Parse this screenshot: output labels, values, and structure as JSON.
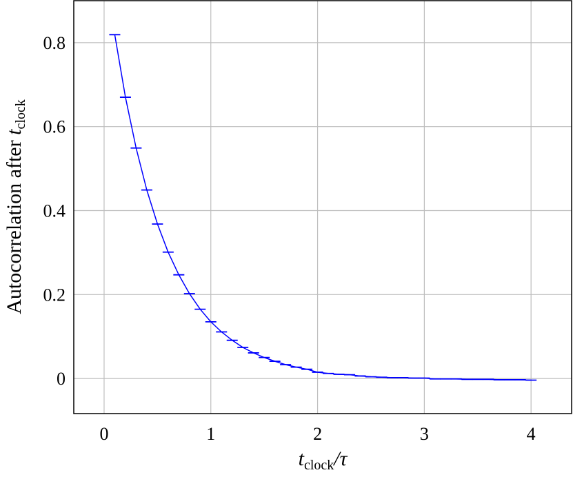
{
  "chart_data": {
    "type": "errorline",
    "xlabel": {
      "main": "t",
      "sub": "clock",
      "rest": "/τ"
    },
    "ylabel": {
      "main": "Autocorrelation after ",
      "var": "t",
      "sub": "clock"
    },
    "x": [
      0.1,
      0.2,
      0.3,
      0.4,
      0.5,
      0.6,
      0.7,
      0.8,
      0.9,
      1.0,
      1.1,
      1.2,
      1.3,
      1.4,
      1.5,
      1.6,
      1.7,
      1.8,
      1.9,
      2.0,
      2.1,
      2.2,
      2.3,
      2.4,
      2.5,
      2.6,
      2.7,
      2.8,
      2.9,
      3.0,
      3.1,
      3.2,
      3.3,
      3.4,
      3.5,
      3.6,
      3.7,
      3.8,
      3.9,
      4.0
    ],
    "series": [
      {
        "color": "#0000ff",
        "values": [
          0.819,
          0.67,
          0.549,
          0.449,
          0.368,
          0.301,
          0.247,
          0.202,
          0.165,
          0.135,
          0.111,
          0.091,
          0.074,
          0.061,
          0.05,
          0.041,
          0.033,
          0.027,
          0.022,
          0.015,
          0.012,
          0.01,
          0.009,
          0.006,
          0.004,
          0.003,
          0.002,
          0.002,
          0.001,
          0.001,
          -0.001,
          -0.001,
          -0.001,
          -0.002,
          -0.002,
          -0.002,
          -0.003,
          -0.003,
          -0.003,
          -0.004
        ]
      }
    ],
    "xlim": [
      -0.284,
      4.38
    ],
    "ylim": [
      -0.0836,
      0.9
    ],
    "xticks": [
      0,
      1,
      2,
      3,
      4
    ],
    "yticks": [
      0,
      0.2,
      0.4,
      0.6,
      0.8
    ],
    "grid": true
  }
}
